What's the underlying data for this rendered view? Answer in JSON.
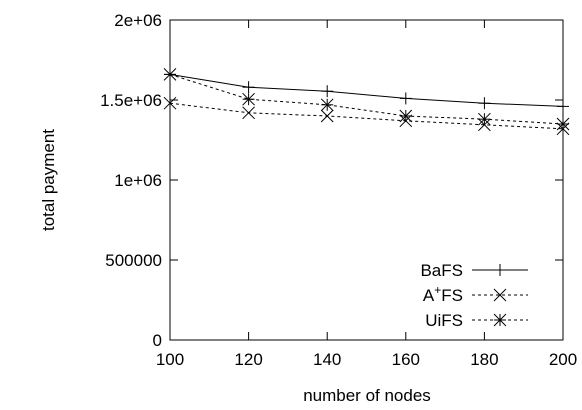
{
  "chart_data": {
    "type": "line",
    "title": "",
    "xlabel": "number of nodes",
    "ylabel": "total payment",
    "xlim": [
      100,
      200
    ],
    "ylim": [
      0,
      2000000
    ],
    "x": [
      100,
      120,
      140,
      160,
      180,
      200
    ],
    "x_tick_labels": [
      "100",
      "120",
      "140",
      "160",
      "180",
      "200"
    ],
    "y_ticks": [
      0,
      500000,
      1000000,
      1500000,
      2000000
    ],
    "y_tick_labels": [
      "0",
      "500000",
      "1e+06",
      "1.5e+06",
      "2e+06"
    ],
    "grid": false,
    "legend_position": "bottom-right",
    "series": [
      {
        "name": "BaFS",
        "name_base": "BaFS",
        "name_sup": "",
        "name_rest": "",
        "marker": "plus",
        "line": "solid",
        "values": [
          1660000,
          1580000,
          1555000,
          1510000,
          1480000,
          1460000
        ]
      },
      {
        "name": "A+FS",
        "name_base": "A",
        "name_sup": "+",
        "name_rest": "FS",
        "marker": "cross",
        "line": "dashed",
        "values": [
          1480000,
          1420000,
          1400000,
          1370000,
          1345000,
          1320000
        ]
      },
      {
        "name": "UiFS",
        "name_base": "UiFS",
        "name_sup": "",
        "name_rest": "",
        "marker": "star",
        "line": "dashed",
        "values": [
          1660000,
          1505000,
          1470000,
          1400000,
          1380000,
          1350000
        ]
      }
    ]
  }
}
